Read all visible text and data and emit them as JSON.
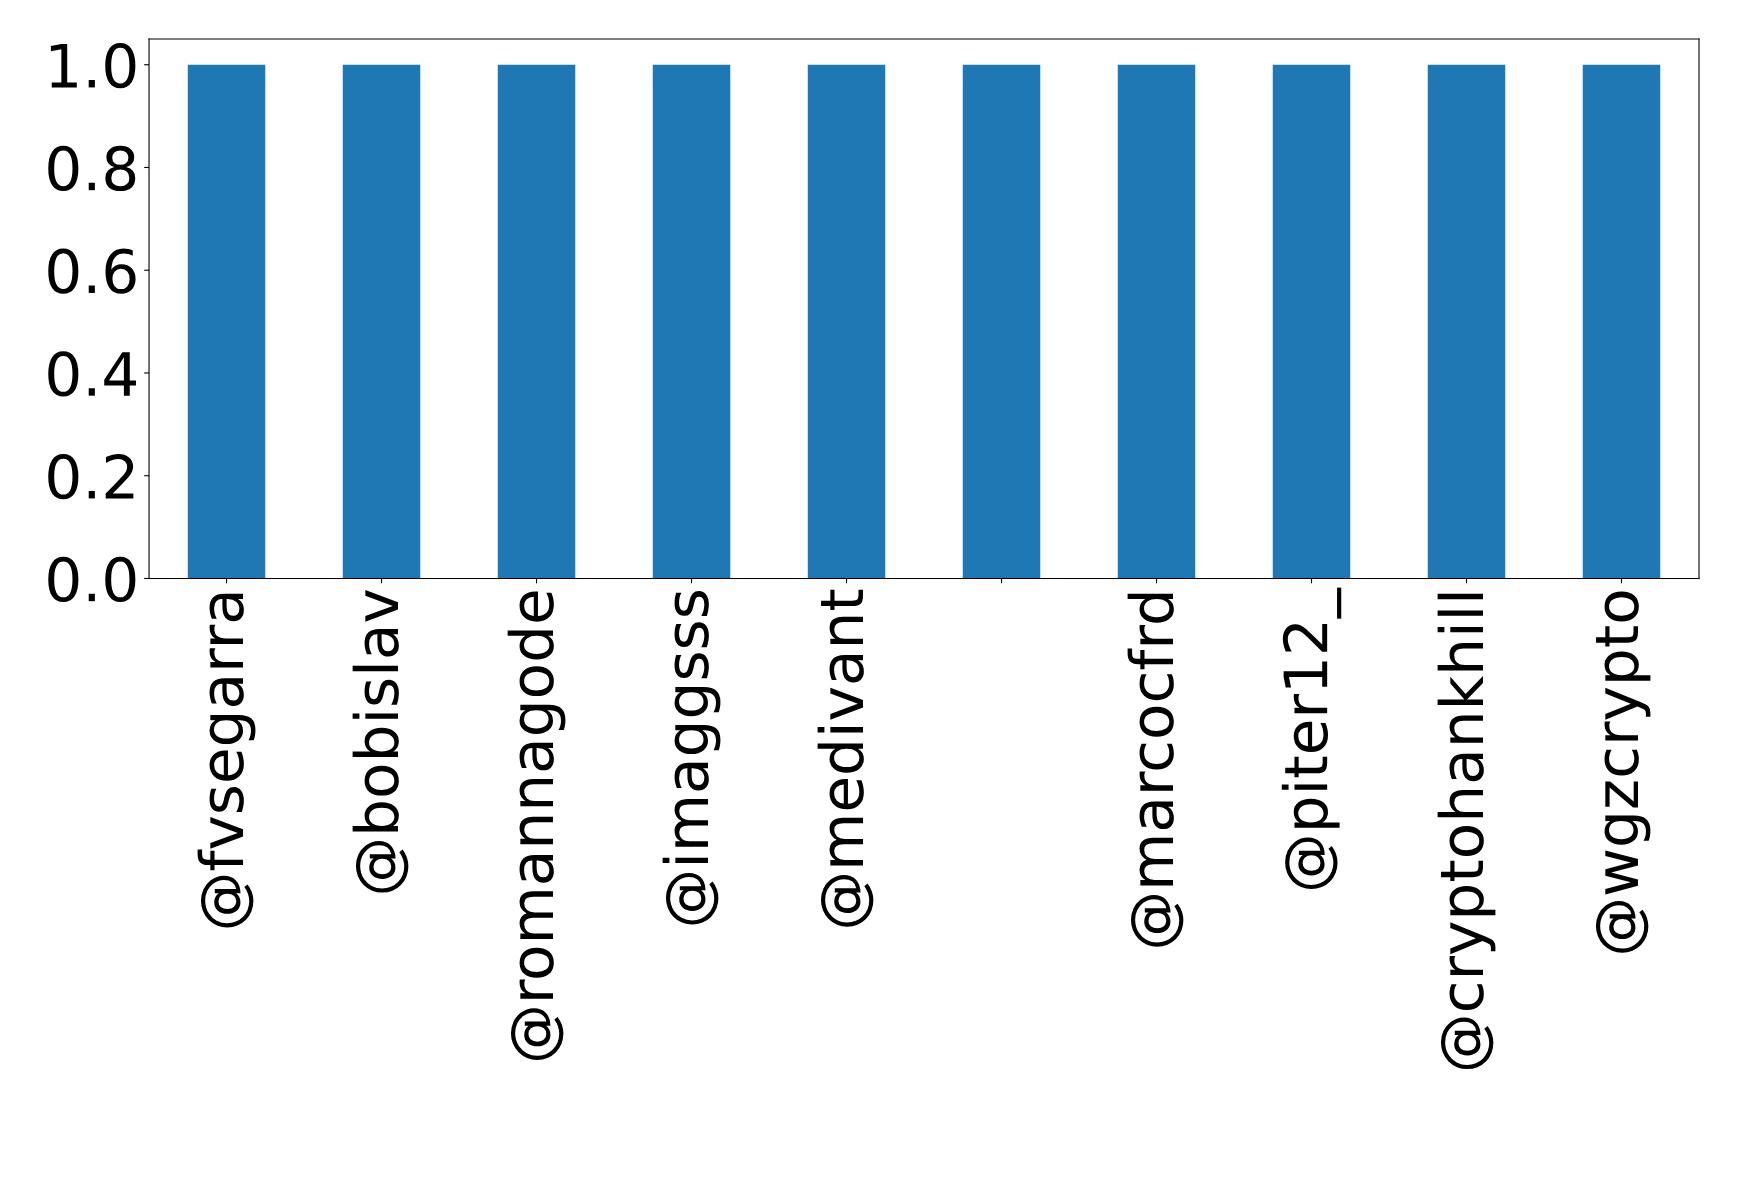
{
  "chart_data": {
    "type": "bar",
    "categories": [
      "@fvsegarra",
      "@bobislav",
      "@romannagode",
      "@imaggsss",
      "@medivant",
      null,
      "@marcocfrd",
      "@piter12_",
      "@cryptohankhill",
      "@wgzcrypto"
    ],
    "values": [
      1.0,
      1.0,
      1.0,
      1.0,
      1.0,
      1.0,
      1.0,
      1.0,
      1.0,
      1.0
    ],
    "color": "#1f77b4",
    "ylim": [
      0,
      1.05
    ],
    "yticks": [
      {
        "value": 0,
        "label": "0.0"
      },
      {
        "value": 0.2,
        "label": "0.2"
      },
      {
        "value": 0.4,
        "label": "0.4"
      },
      {
        "value": 0.6,
        "label": "0.6"
      },
      {
        "value": 0.8,
        "label": "0.8"
      },
      {
        "value": 1.0,
        "label": "1.0"
      }
    ],
    "grid": false,
    "legend": false
  }
}
